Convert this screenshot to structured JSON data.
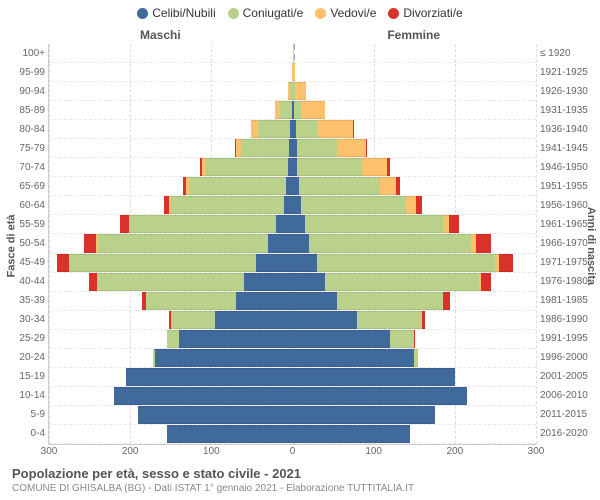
{
  "chart": {
    "type": "population-pyramid",
    "background_color": "#ffffff",
    "grid_color": "#dddddd",
    "center_line_color": "#aaaaaa",
    "label_color": "#666666",
    "axis_label_fontsize": 10,
    "gender_labels": {
      "male": "Maschi",
      "female": "Femmine"
    },
    "y_axis_left_title": "Fasce di età",
    "y_axis_right_title": "Anni di nascita",
    "x_axis_max": 300,
    "x_ticks": [
      300,
      200,
      100,
      0,
      100,
      200,
      300
    ],
    "legend": {
      "items": [
        {
          "label": "Celibi/Nubili",
          "color": "#40699c"
        },
        {
          "label": "Coniugati/e",
          "color": "#b9d18b"
        },
        {
          "label": "Vedovi/e",
          "color": "#fbc16b"
        },
        {
          "label": "Divorziati/e",
          "color": "#d9322a"
        }
      ]
    },
    "age_bins": [
      {
        "age": "100+",
        "years": "≤ 1920",
        "male": {
          "single": 0,
          "married": 0,
          "widow": 0,
          "div": 0
        },
        "female": {
          "single": 0,
          "married": 0,
          "widow": 1,
          "div": 0
        }
      },
      {
        "age": "95-99",
        "years": "1921-1925",
        "male": {
          "single": 0,
          "married": 0,
          "widow": 1,
          "div": 0
        },
        "female": {
          "single": 0,
          "married": 0,
          "widow": 3,
          "div": 0
        }
      },
      {
        "age": "90-94",
        "years": "1926-1930",
        "male": {
          "single": 0,
          "married": 3,
          "widow": 2,
          "div": 0
        },
        "female": {
          "single": 1,
          "married": 2,
          "widow": 14,
          "div": 0
        }
      },
      {
        "age": "85-89",
        "years": "1931-1935",
        "male": {
          "single": 1,
          "married": 15,
          "widow": 6,
          "div": 0
        },
        "female": {
          "single": 2,
          "married": 8,
          "widow": 30,
          "div": 0
        }
      },
      {
        "age": "80-84",
        "years": "1936-1940",
        "male": {
          "single": 3,
          "married": 40,
          "widow": 8,
          "div": 0
        },
        "female": {
          "single": 4,
          "married": 28,
          "widow": 42,
          "div": 1
        }
      },
      {
        "age": "75-79",
        "years": "1941-1945",
        "male": {
          "single": 4,
          "married": 60,
          "widow": 6,
          "div": 1
        },
        "female": {
          "single": 5,
          "married": 50,
          "widow": 35,
          "div": 2
        }
      },
      {
        "age": "70-74",
        "years": "1946-1950",
        "male": {
          "single": 6,
          "married": 100,
          "widow": 5,
          "div": 3
        },
        "female": {
          "single": 6,
          "married": 80,
          "widow": 30,
          "div": 4
        }
      },
      {
        "age": "65-69",
        "years": "1951-1955",
        "male": {
          "single": 8,
          "married": 120,
          "widow": 3,
          "div": 4
        },
        "female": {
          "single": 8,
          "married": 100,
          "widow": 20,
          "div": 5
        }
      },
      {
        "age": "60-64",
        "years": "1956-1960",
        "male": {
          "single": 10,
          "married": 140,
          "widow": 2,
          "div": 6
        },
        "female": {
          "single": 10,
          "married": 130,
          "widow": 12,
          "div": 8
        }
      },
      {
        "age": "55-59",
        "years": "1961-1965",
        "male": {
          "single": 20,
          "married": 180,
          "widow": 2,
          "div": 10
        },
        "female": {
          "single": 15,
          "married": 170,
          "widow": 8,
          "div": 12
        }
      },
      {
        "age": "50-54",
        "years": "1966-1970",
        "male": {
          "single": 30,
          "married": 210,
          "widow": 2,
          "div": 15
        },
        "female": {
          "single": 20,
          "married": 200,
          "widow": 6,
          "div": 18
        }
      },
      {
        "age": "45-49",
        "years": "1971-1975",
        "male": {
          "single": 45,
          "married": 230,
          "widow": 1,
          "div": 14
        },
        "female": {
          "single": 30,
          "married": 220,
          "widow": 4,
          "div": 18
        }
      },
      {
        "age": "40-44",
        "years": "1976-1980",
        "male": {
          "single": 60,
          "married": 180,
          "widow": 1,
          "div": 10
        },
        "female": {
          "single": 40,
          "married": 190,
          "widow": 2,
          "div": 12
        }
      },
      {
        "age": "35-39",
        "years": "1981-1985",
        "male": {
          "single": 70,
          "married": 110,
          "widow": 0,
          "div": 5
        },
        "female": {
          "single": 55,
          "married": 130,
          "widow": 1,
          "div": 8
        }
      },
      {
        "age": "30-34",
        "years": "1986-1990",
        "male": {
          "single": 95,
          "married": 55,
          "widow": 0,
          "div": 2
        },
        "female": {
          "single": 80,
          "married": 80,
          "widow": 0,
          "div": 3
        }
      },
      {
        "age": "25-29",
        "years": "1991-1995",
        "male": {
          "single": 140,
          "married": 15,
          "widow": 0,
          "div": 0
        },
        "female": {
          "single": 120,
          "married": 30,
          "widow": 0,
          "div": 1
        }
      },
      {
        "age": "20-24",
        "years": "1996-2000",
        "male": {
          "single": 170,
          "married": 2,
          "widow": 0,
          "div": 0
        },
        "female": {
          "single": 150,
          "married": 5,
          "widow": 0,
          "div": 0
        }
      },
      {
        "age": "15-19",
        "years": "2001-2005",
        "male": {
          "single": 205,
          "married": 0,
          "widow": 0,
          "div": 0
        },
        "female": {
          "single": 200,
          "married": 0,
          "widow": 0,
          "div": 0
        }
      },
      {
        "age": "10-14",
        "years": "2006-2010",
        "male": {
          "single": 220,
          "married": 0,
          "widow": 0,
          "div": 0
        },
        "female": {
          "single": 215,
          "married": 0,
          "widow": 0,
          "div": 0
        }
      },
      {
        "age": "5-9",
        "years": "2011-2015",
        "male": {
          "single": 190,
          "married": 0,
          "widow": 0,
          "div": 0
        },
        "female": {
          "single": 175,
          "married": 0,
          "widow": 0,
          "div": 0
        }
      },
      {
        "age": "0-4",
        "years": "2016-2020",
        "male": {
          "single": 155,
          "married": 0,
          "widow": 0,
          "div": 0
        },
        "female": {
          "single": 145,
          "married": 0,
          "widow": 0,
          "div": 0
        }
      }
    ],
    "footer": {
      "title": "Popolazione per età, sesso e stato civile - 2021",
      "subtitle": "COMUNE DI GHISALBA (BG) - Dati ISTAT 1° gennaio 2021 - Elaborazione TUTTITALIA.IT"
    }
  }
}
